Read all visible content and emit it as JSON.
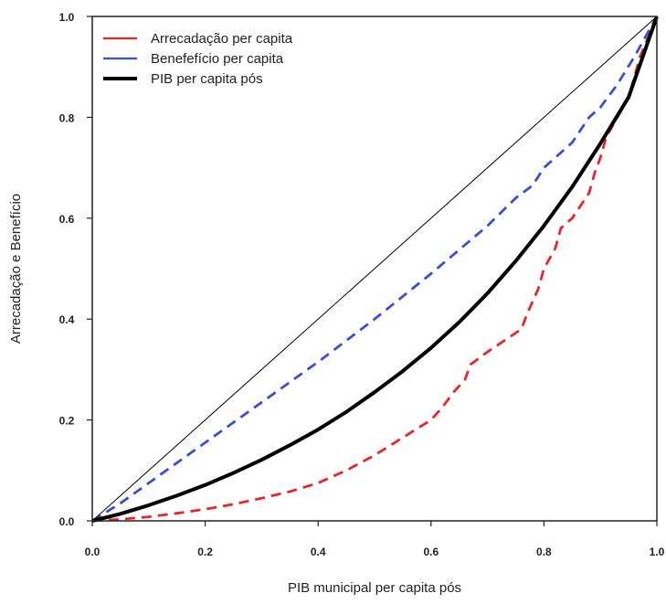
{
  "chart_data": {
    "type": "line",
    "title": "",
    "xlabel": "PIB municipal per capita pós",
    "ylabel": "Arrecadação e Benefício",
    "xlim": [
      0,
      1
    ],
    "ylim": [
      0,
      1
    ],
    "x_ticks": [
      "0.0",
      "0.2",
      "0.4",
      "0.6",
      "0.8",
      "1.0"
    ],
    "y_ticks": [
      "0.0",
      "0.2",
      "0.4",
      "0.6",
      "0.8",
      "1.0"
    ],
    "grid": false,
    "legend_position": "top-left",
    "series": [
      {
        "name": "Arrecadação per capita",
        "color": "#e8262a",
        "style": "dashed",
        "x": [
          0,
          0.05,
          0.1,
          0.15,
          0.2,
          0.25,
          0.3,
          0.35,
          0.4,
          0.43,
          0.45,
          0.5,
          0.55,
          0.6,
          0.62,
          0.64,
          0.66,
          0.67,
          0.7,
          0.72,
          0.76,
          0.77,
          0.79,
          0.8,
          0.82,
          0.83,
          0.85,
          0.88,
          0.89,
          0.9,
          0.91,
          0.93,
          0.95,
          0.97,
          1.0
        ],
        "y": [
          0,
          0.003,
          0.008,
          0.015,
          0.023,
          0.033,
          0.045,
          0.058,
          0.075,
          0.09,
          0.1,
          0.13,
          0.165,
          0.2,
          0.225,
          0.255,
          0.28,
          0.31,
          0.335,
          0.35,
          0.38,
          0.41,
          0.46,
          0.5,
          0.54,
          0.58,
          0.6,
          0.65,
          0.69,
          0.72,
          0.76,
          0.8,
          0.84,
          0.92,
          1.0
        ]
      },
      {
        "name": "Benefefício per capita",
        "color": "#3a4fd0",
        "style": "dashed",
        "x": [
          0,
          0.05,
          0.1,
          0.2,
          0.3,
          0.4,
          0.5,
          0.6,
          0.7,
          0.75,
          0.78,
          0.8,
          0.85,
          0.88,
          0.9,
          0.93,
          0.96,
          1.0
        ],
        "y": [
          0,
          0.035,
          0.075,
          0.155,
          0.235,
          0.315,
          0.4,
          0.49,
          0.585,
          0.64,
          0.665,
          0.7,
          0.75,
          0.8,
          0.82,
          0.865,
          0.92,
          1.0
        ]
      },
      {
        "name": "PIB per capita pós",
        "color": "#000000",
        "style": "solid-thick",
        "x": [
          0,
          0.05,
          0.1,
          0.15,
          0.2,
          0.25,
          0.3,
          0.35,
          0.4,
          0.45,
          0.5,
          0.55,
          0.6,
          0.65,
          0.7,
          0.75,
          0.8,
          0.85,
          0.9,
          0.95,
          1.0
        ],
        "y": [
          0,
          0.014,
          0.031,
          0.05,
          0.071,
          0.095,
          0.121,
          0.15,
          0.181,
          0.216,
          0.255,
          0.297,
          0.343,
          0.394,
          0.451,
          0.515,
          0.585,
          0.662,
          0.748,
          0.84,
          1.0
        ]
      },
      {
        "name": "",
        "color": "#000000",
        "style": "solid-thin",
        "x": [
          0,
          1
        ],
        "y": [
          0,
          1
        ]
      }
    ]
  }
}
